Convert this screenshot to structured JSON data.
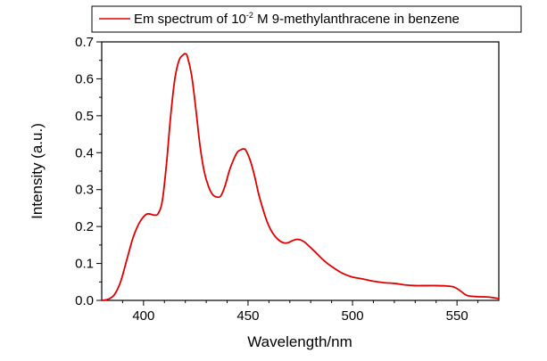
{
  "chart_data": {
    "type": "line",
    "title": "",
    "xlabel": "Wavelength/nm",
    "ylabel": "Intensity (a.u.)",
    "xlim": [
      380,
      570
    ],
    "ylim": [
      0.0,
      0.7
    ],
    "grid": false,
    "legend_position": "top",
    "x_ticks": [
      400,
      450,
      500,
      550
    ],
    "x_tick_labels": [
      "400",
      "450",
      "500",
      "550"
    ],
    "y_ticks": [
      0.0,
      0.1,
      0.2,
      0.3,
      0.4,
      0.5,
      0.6,
      0.7
    ],
    "y_tick_labels": [
      "0.0",
      "0.1",
      "0.2",
      "0.3",
      "0.4",
      "0.5",
      "0.6",
      "0.7"
    ],
    "legend": {
      "text_before": "Em spectrum of 10",
      "superscript": "-2",
      "text_after": " M 9-methylanthracene in benzene"
    },
    "series": [
      {
        "name": "Em spectrum of 10-2 M 9-methylanthracene in benzene",
        "color": "#e00000",
        "x": [
          380,
          383,
          386,
          389,
          392,
          395,
          398,
          401,
          403,
          405,
          407,
          409,
          411,
          413,
          415,
          417,
          419,
          420,
          421,
          423,
          425,
          427,
          429,
          431,
          433,
          435,
          437,
          439,
          441,
          443,
          445,
          447,
          448,
          449,
          451,
          453,
          455,
          457,
          459,
          461,
          463,
          465,
          467,
          469,
          471,
          473,
          475,
          477,
          479,
          482,
          485,
          488,
          491,
          494,
          497,
          500,
          505,
          510,
          515,
          520,
          525,
          530,
          535,
          540,
          545,
          548,
          550,
          552,
          555,
          560,
          565,
          570
        ],
        "y": [
          0.0,
          0.003,
          0.015,
          0.05,
          0.11,
          0.17,
          0.21,
          0.232,
          0.234,
          0.231,
          0.235,
          0.27,
          0.37,
          0.5,
          0.6,
          0.65,
          0.665,
          0.668,
          0.66,
          0.61,
          0.52,
          0.42,
          0.35,
          0.31,
          0.287,
          0.28,
          0.283,
          0.31,
          0.35,
          0.38,
          0.402,
          0.409,
          0.41,
          0.406,
          0.38,
          0.34,
          0.29,
          0.25,
          0.215,
          0.19,
          0.173,
          0.162,
          0.156,
          0.156,
          0.161,
          0.165,
          0.164,
          0.158,
          0.148,
          0.132,
          0.115,
          0.1,
          0.088,
          0.077,
          0.069,
          0.063,
          0.058,
          0.052,
          0.048,
          0.046,
          0.042,
          0.04,
          0.04,
          0.04,
          0.039,
          0.037,
          0.032,
          0.024,
          0.013,
          0.01,
          0.009,
          0.005
        ]
      }
    ]
  }
}
